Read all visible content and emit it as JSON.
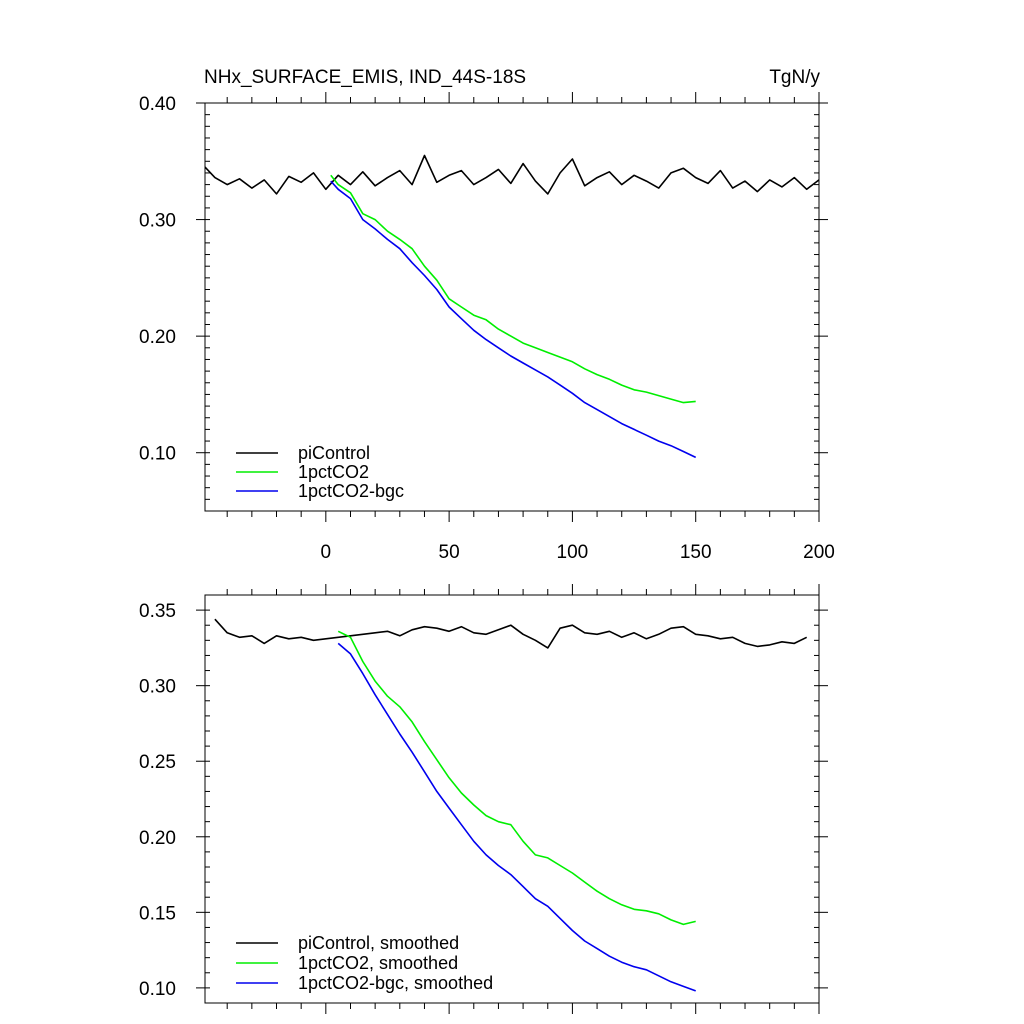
{
  "chart_data": [
    {
      "type": "line",
      "title": "NHx_SURFACE_EMIS, IND_44S-18S",
      "units": "TgN/y",
      "xlim": [
        -49,
        200
      ],
      "ylim": [
        0.05,
        0.4
      ],
      "xticks": [
        0,
        50,
        100,
        150,
        200
      ],
      "xtick_labels": [
        "0",
        "50",
        "100",
        "150",
        "200"
      ],
      "yticks": [
        0.1,
        0.2,
        0.3,
        0.4
      ],
      "ytick_labels": [
        "0.10",
        "0.20",
        "0.30",
        "0.40"
      ],
      "legend_position": "bottom-left",
      "series": [
        {
          "name": "piControl",
          "color": "#000000",
          "x": [
            -49,
            -45,
            -40,
            -35,
            -30,
            -25,
            -20,
            -15,
            -10,
            -5,
            0,
            5,
            10,
            15,
            20,
            25,
            30,
            35,
            40,
            45,
            50,
            55,
            60,
            65,
            70,
            75,
            80,
            85,
            90,
            95,
            100,
            105,
            110,
            115,
            120,
            125,
            130,
            135,
            140,
            145,
            150,
            155,
            160,
            165,
            170,
            175,
            180,
            185,
            190,
            195,
            200
          ],
          "values": [
            0.345,
            0.336,
            0.33,
            0.335,
            0.327,
            0.334,
            0.322,
            0.337,
            0.332,
            0.34,
            0.326,
            0.338,
            0.33,
            0.341,
            0.329,
            0.336,
            0.342,
            0.33,
            0.355,
            0.332,
            0.338,
            0.342,
            0.33,
            0.336,
            0.343,
            0.331,
            0.348,
            0.333,
            0.322,
            0.34,
            0.352,
            0.329,
            0.336,
            0.341,
            0.33,
            0.338,
            0.333,
            0.327,
            0.34,
            0.344,
            0.336,
            0.331,
            0.342,
            0.327,
            0.333,
            0.324,
            0.334,
            0.328,
            0.336,
            0.326,
            0.334
          ]
        },
        {
          "name": "1pctCO2",
          "color": "#00ee00",
          "x": [
            2,
            5,
            10,
            15,
            20,
            25,
            30,
            35,
            40,
            45,
            50,
            55,
            60,
            65,
            70,
            75,
            80,
            85,
            90,
            95,
            100,
            105,
            110,
            115,
            120,
            125,
            130,
            135,
            140,
            145,
            150
          ],
          "values": [
            0.338,
            0.33,
            0.323,
            0.305,
            0.3,
            0.29,
            0.283,
            0.275,
            0.26,
            0.248,
            0.232,
            0.225,
            0.218,
            0.214,
            0.206,
            0.2,
            0.194,
            0.19,
            0.186,
            0.182,
            0.178,
            0.172,
            0.167,
            0.163,
            0.158,
            0.154,
            0.152,
            0.149,
            0.146,
            0.143,
            0.144
          ]
        },
        {
          "name": "1pctCO2-bgc",
          "color": "#0000ee",
          "x": [
            2,
            5,
            10,
            15,
            20,
            25,
            30,
            35,
            40,
            45,
            50,
            55,
            60,
            65,
            70,
            75,
            80,
            85,
            90,
            95,
            100,
            105,
            110,
            115,
            120,
            125,
            130,
            135,
            140,
            145,
            150
          ],
          "values": [
            0.333,
            0.326,
            0.318,
            0.3,
            0.292,
            0.283,
            0.275,
            0.263,
            0.252,
            0.24,
            0.225,
            0.215,
            0.205,
            0.197,
            0.19,
            0.183,
            0.177,
            0.171,
            0.165,
            0.158,
            0.151,
            0.143,
            0.137,
            0.131,
            0.125,
            0.12,
            0.115,
            0.11,
            0.106,
            0.101,
            0.096
          ]
        }
      ]
    },
    {
      "type": "line",
      "title": "",
      "xlim": [
        -49,
        200
      ],
      "ylim": [
        0.09,
        0.36
      ],
      "xticks": [
        0,
        50,
        100,
        150,
        200
      ],
      "yticks": [
        0.1,
        0.15,
        0.2,
        0.25,
        0.3,
        0.35
      ],
      "ytick_labels": [
        "0.10",
        "0.15",
        "0.20",
        "0.25",
        "0.30",
        "0.35"
      ],
      "legend_position": "bottom-left",
      "series": [
        {
          "name": "piControl, smoothed",
          "color": "#000000",
          "x": [
            -45,
            -40,
            -35,
            -30,
            -25,
            -20,
            -15,
            -10,
            -5,
            0,
            5,
            10,
            15,
            20,
            25,
            30,
            35,
            40,
            45,
            50,
            55,
            60,
            65,
            70,
            75,
            80,
            85,
            90,
            95,
            100,
            105,
            110,
            115,
            120,
            125,
            130,
            135,
            140,
            145,
            150,
            155,
            160,
            165,
            170,
            175,
            180,
            185,
            190,
            195
          ],
          "values": [
            0.344,
            0.335,
            0.332,
            0.333,
            0.328,
            0.333,
            0.331,
            0.332,
            0.33,
            0.331,
            0.332,
            0.333,
            0.334,
            0.335,
            0.336,
            0.333,
            0.337,
            0.339,
            0.338,
            0.336,
            0.339,
            0.335,
            0.334,
            0.337,
            0.34,
            0.334,
            0.33,
            0.325,
            0.338,
            0.34,
            0.335,
            0.334,
            0.336,
            0.332,
            0.335,
            0.331,
            0.334,
            0.338,
            0.339,
            0.334,
            0.333,
            0.331,
            0.332,
            0.328,
            0.326,
            0.327,
            0.329,
            0.328,
            0.332
          ]
        },
        {
          "name": "1pctCO2, smoothed",
          "color": "#00ee00",
          "x": [
            5,
            10,
            15,
            20,
            25,
            30,
            35,
            40,
            45,
            50,
            55,
            60,
            65,
            70,
            75,
            80,
            85,
            90,
            95,
            100,
            105,
            110,
            115,
            120,
            125,
            130,
            135,
            140,
            145,
            150
          ],
          "values": [
            0.336,
            0.332,
            0.316,
            0.303,
            0.293,
            0.286,
            0.276,
            0.263,
            0.251,
            0.239,
            0.229,
            0.221,
            0.214,
            0.21,
            0.208,
            0.197,
            0.188,
            0.186,
            0.181,
            0.176,
            0.17,
            0.164,
            0.159,
            0.155,
            0.152,
            0.151,
            0.149,
            0.145,
            0.142,
            0.144
          ]
        },
        {
          "name": "1pctCO2-bgc, smoothed",
          "color": "#0000ee",
          "x": [
            5,
            10,
            15,
            20,
            25,
            30,
            35,
            40,
            45,
            50,
            55,
            60,
            65,
            70,
            75,
            80,
            85,
            90,
            95,
            100,
            105,
            110,
            115,
            120,
            125,
            130,
            135,
            140,
            145,
            150
          ],
          "values": [
            0.328,
            0.321,
            0.308,
            0.294,
            0.281,
            0.268,
            0.256,
            0.243,
            0.23,
            0.219,
            0.208,
            0.197,
            0.188,
            0.181,
            0.175,
            0.167,
            0.159,
            0.154,
            0.146,
            0.138,
            0.131,
            0.126,
            0.121,
            0.117,
            0.114,
            0.112,
            0.108,
            0.104,
            0.101,
            0.098
          ]
        }
      ]
    }
  ]
}
